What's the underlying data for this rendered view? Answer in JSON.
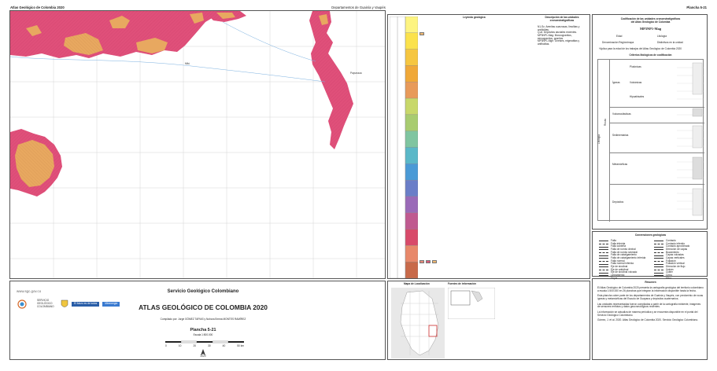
{
  "header": {
    "left": "Atlas Geológico de Colombia 2020",
    "center": "Departamentos de Guainía y Vaupés",
    "right": "Plancha 5-21"
  },
  "map": {
    "place_labels": [
      "Mitú",
      "Papunaua"
    ],
    "colors": {
      "magenta": "#e0507a",
      "orange": "#e8a860",
      "hatch": "#c03a64"
    }
  },
  "chrono": {
    "title": "Leyenda geológica",
    "desc_title": "Descripción de las unidades cronoestratigráficas",
    "desc_lines": [
      "N1-Sc: Arenitas cuarzosas, limolitas y arcillolitas.",
      "Q-al: Depósitos aluviales recientes.",
      "MP3NP1-Mag: Monzogranitos, sienogranitos, granitos.",
      "MP3NP1-Mgh: Gneises, migmatitas y anfibolitas."
    ],
    "era_colors": [
      "#fdf481",
      "#fbe24c",
      "#f6c640",
      "#f0a838",
      "#e89a5a",
      "#c8d86a",
      "#a8cc70",
      "#7fc5a0",
      "#5ab8c8",
      "#4a9ad6",
      "#6a7ec8",
      "#9a6ab8",
      "#c05a90",
      "#d84a6a",
      "#e8886a",
      "#c86a4a"
    ]
  },
  "classification": {
    "title1": "Codificación de las unidades cronoestratigráficas",
    "title2": "del Atlas Geológico de Colombia",
    "code": "MP3NP1-Mag",
    "edad_label": "Edad",
    "litologia_label": "Litología",
    "sub_label": "Denominación Región/mapa",
    "sub_value": "Distintivos en la unidad",
    "note": "*Aplica para la edad de los trabajos del Atlas Geológico de Colombia 2020",
    "criteria_title": "Criterios litológicos de codificación",
    "groups": [
      {
        "name": "Ígneas",
        "sub": [
          "Plutónicas",
          "Volcánicas",
          "Hipoabisales"
        ]
      },
      {
        "name": "Volcanoclásticas",
        "sub": []
      },
      {
        "name": "Sedimentarias",
        "sub": []
      },
      {
        "name": "Metamórficas",
        "sub": []
      },
      {
        "name": "Depósitos",
        "sub": []
      }
    ],
    "side_label": "Litología",
    "rocks_label": "Rocas"
  },
  "conventions": {
    "title": "Convenciones geológicas",
    "left": [
      "Falla",
      "Falla inferida",
      "Falla cubierta",
      "Falla de rumbo dextral",
      "Falla de rumbo sinestral",
      "Falla de cabalgamiento",
      "Falla de cabalgamiento inferida",
      "Falla normal",
      "Falla normal inferida",
      "Eje de sinclinal",
      "Eje de anticlinal",
      "Eje de sinclinal volcado",
      "Lineamiento",
      "Dique"
    ],
    "right": [
      "Contacto",
      "Contacto inferido",
      "Contacto aproximado",
      "Dirección de capas",
      "Buzamiento",
      "Capas volcadas",
      "Capas verticales",
      "Foliación",
      "Foliación vertical",
      "Dirección de flujo",
      "Volcán",
      "Cráter",
      "Cerro",
      "Mina"
    ]
  },
  "resumen": {
    "title": "Resumen",
    "paras": [
      "El Atlas Geológico de Colombia 2020 presenta la cartografía geológica del territorio colombiano a escala 1:500.000 en 26 planchas que integran la información disponible hasta la fecha.",
      "Esta plancha cubre parte de los departamentos de Guainía y Vaupés, con predominio de rocas ígneas y metamórficas del Escudo de Guayana y depósitos cuaternarios.",
      "Las unidades representadas fueron compiladas a partir de la cartografía existente, imágenes de sensores remotos y datos geocronológicos recientes.",
      "La información se actualiza de manera periódica y se encuentra disponible en el portal del Servicio Geológico Colombiano."
    ],
    "citation": "Gómez, J. et al. 2020. Atlas Geológico de Colombia 2020. Servicio Geológico Colombiano."
  },
  "title_block": {
    "org": "Servicio Geológico Colombiano",
    "title": "ATLAS GEOLÓGICO DE COLOMBIA 2020",
    "authors": "Compilado por: Jorge GÓMEZ TAPIAS y Nohora Emma MONTES RAMÍREZ",
    "plate": "Plancha 5-21",
    "scale": "Escala 1:500.000",
    "year": "2020",
    "web": "www.sgc.gov.co",
    "logo1": "SERVICIO GEOLÓGICO COLOMBIANO",
    "logo2": "El futuro es de todos",
    "logo3": "Minenergía",
    "scale_ticks": [
      "0",
      "10",
      "20",
      "30",
      "40",
      "50 km"
    ]
  },
  "locator": {
    "title1": "Mapa de Localización",
    "title2": "Fuentes de información"
  }
}
